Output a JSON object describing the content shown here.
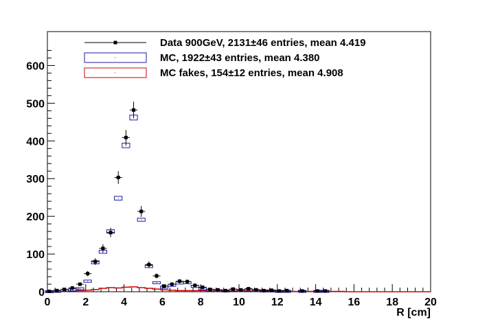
{
  "chart_data": {
    "type": "scatter",
    "title": "",
    "xlabel": "R [cm]",
    "ylabel": "",
    "xlim": [
      0,
      20
    ],
    "ylim": [
      0,
      690
    ],
    "x_ticks": [
      0,
      2,
      4,
      6,
      8,
      10,
      12,
      14,
      16,
      18,
      20
    ],
    "y_ticks": [
      0,
      100,
      200,
      300,
      400,
      500,
      600
    ],
    "grid": false,
    "legend_position": "top",
    "colors": {
      "data": "#000000",
      "mc": "#1a1aa0",
      "fakes": "#cc0000"
    },
    "series": [
      {
        "name": "Data 900GeV, 2131±46 entries, mean 4.419",
        "kind": "points-with-errors",
        "x": [
          0.1,
          0.5,
          0.9,
          1.3,
          1.7,
          2.1,
          2.5,
          2.9,
          3.3,
          3.7,
          4.1,
          4.5,
          4.9,
          5.3,
          5.7,
          6.1,
          6.5,
          6.9,
          7.3,
          7.7,
          8.1,
          8.5,
          8.9,
          9.3,
          9.7,
          10.1,
          10.5,
          10.9,
          11.3,
          11.7,
          12.1,
          12.5,
          13.3,
          14.1,
          14.5
        ],
        "y": [
          1,
          3,
          6,
          10,
          20,
          48,
          80,
          115,
          157,
          303,
          409,
          482,
          213,
          72,
          42,
          15,
          20,
          28,
          27,
          17,
          12,
          6,
          5,
          3,
          7,
          5,
          8,
          5,
          3,
          4,
          2,
          3,
          2,
          2,
          2
        ],
        "err": [
          1,
          2,
          2.5,
          3,
          4.5,
          7,
          9,
          11,
          12.5,
          17,
          20,
          22,
          14.5,
          8.5,
          6.5,
          4,
          4.5,
          5,
          5,
          4,
          3.5,
          2.5,
          2.2,
          1.7,
          2.6,
          2.2,
          2.8,
          2.2,
          1.7,
          2,
          1.4,
          1.7,
          1.4,
          1.4,
          1.4
        ]
      },
      {
        "name": "MC, 1922±43 entries, mean 4.380",
        "kind": "error-boxes",
        "x": [
          0.1,
          0.5,
          0.9,
          1.3,
          1.7,
          2.1,
          2.5,
          2.9,
          3.3,
          3.7,
          4.1,
          4.5,
          4.9,
          5.3,
          5.7,
          6.1,
          6.5,
          6.9,
          7.3,
          7.7,
          8.1,
          8.5,
          8.9,
          9.3,
          9.7,
          10.1,
          10.5,
          10.9,
          11.3,
          11.7,
          12.1,
          12.5,
          13.3,
          14.1,
          14.5
        ],
        "y": [
          0,
          1,
          3,
          5,
          8,
          28,
          78,
          106,
          160,
          248,
          388,
          462,
          191,
          67,
          24,
          12,
          17,
          23,
          24,
          14,
          8,
          4,
          3,
          2,
          4,
          3,
          4,
          3,
          2,
          2,
          1,
          1,
          1,
          1,
          1
        ],
        "err": [
          0.5,
          1,
          1.5,
          2,
          2.5,
          3,
          4,
          4,
          4.5,
          5,
          6,
          6.5,
          4,
          3,
          2.5,
          2,
          2,
          2.5,
          2.5,
          2,
          1.5,
          1,
          1,
          1,
          1,
          1,
          1,
          1,
          1,
          1,
          1,
          1,
          1,
          1,
          1
        ]
      },
      {
        "name": "MC fakes, 154±12 entries, mean 4.908",
        "kind": "step-line",
        "x": [
          0.1,
          0.5,
          0.9,
          1.3,
          1.7,
          2.1,
          2.5,
          2.9,
          3.3,
          3.7,
          4.1,
          4.5,
          4.9,
          5.3,
          5.7,
          6.1,
          6.5,
          6.9,
          7.3,
          7.7,
          8.1,
          8.5,
          8.9,
          9.3,
          9.7,
          10.1,
          10.5,
          10.9,
          11.3,
          11.7,
          12.1,
          12.5,
          12.9,
          13.3,
          13.7,
          14.1,
          14.5,
          14.9,
          15.3,
          15.7,
          16.1,
          16.5,
          16.9,
          17.3,
          17.7,
          18.1,
          18.5,
          18.9,
          19.3,
          19.7
        ],
        "y": [
          0,
          0,
          1,
          2,
          3,
          4,
          6,
          9,
          11,
          10,
          12,
          13,
          11,
          9,
          7,
          5,
          4,
          3,
          3,
          3,
          3,
          2,
          2,
          2,
          2,
          2,
          2,
          2,
          2,
          2,
          1,
          1,
          1,
          1,
          1,
          1,
          1,
          1,
          1,
          0,
          0,
          0,
          0,
          0,
          0,
          0,
          0,
          0,
          0,
          0
        ]
      }
    ]
  }
}
